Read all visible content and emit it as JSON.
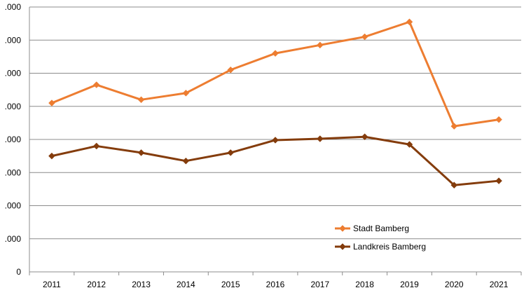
{
  "chart_data": {
    "type": "line",
    "title": "",
    "xlabel": "",
    "ylabel": "",
    "categories": [
      "2011",
      "2012",
      "2013",
      "2014",
      "2015",
      "2016",
      "2017",
      "2018",
      "2019",
      "2020",
      "2021"
    ],
    "y_ticks": [
      {
        "value": 0,
        "label": "0"
      },
      {
        "value": 1,
        "label": ".000"
      },
      {
        "value": 2,
        "label": ".000"
      },
      {
        "value": 3,
        "label": ".000"
      },
      {
        "value": 4,
        "label": ".000"
      },
      {
        "value": 5,
        "label": ".000"
      },
      {
        "value": 6,
        "label": ".000"
      },
      {
        "value": 7,
        "label": ".000"
      },
      {
        "value": 8,
        "label": ".000"
      }
    ],
    "ylim": [
      0,
      8
    ],
    "grid": true,
    "legend_position": "bottom-right",
    "series": [
      {
        "name": "Stadt Bamberg",
        "color": "#ED7D31",
        "values": [
          5.1,
          5.65,
          5.2,
          5.4,
          6.1,
          6.6,
          6.85,
          7.1,
          7.55,
          4.4,
          4.6
        ]
      },
      {
        "name": "Landkreis Bamberg",
        "color": "#843C0C",
        "values": [
          3.5,
          3.8,
          3.6,
          3.35,
          3.6,
          3.98,
          4.02,
          4.08,
          3.85,
          2.62,
          2.75
        ]
      }
    ]
  }
}
